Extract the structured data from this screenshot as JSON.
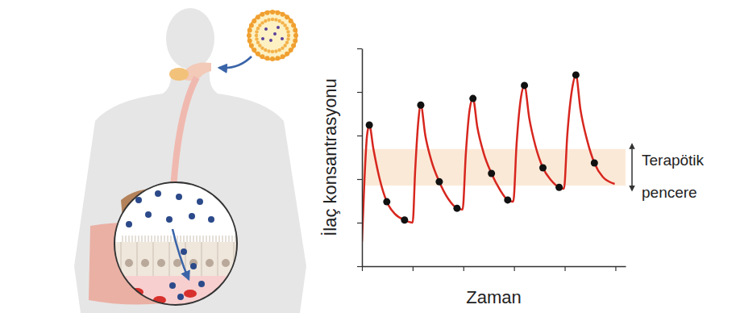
{
  "chart_data": {
    "type": "line",
    "x_label": "Zaman",
    "y_label": "İlaç konsantrasyonu",
    "xlim": [
      0,
      10.4
    ],
    "xticks": [
      0,
      2,
      4,
      6,
      8,
      10
    ],
    "ylim": [
      0,
      5
    ],
    "yticks": [
      0,
      1,
      2,
      3,
      4,
      5
    ],
    "tick_labels": false,
    "grid": false,
    "series": [
      {
        "type": "line",
        "color": "#d7261e",
        "x": [
          0,
          0.1,
          0.2,
          0.29,
          0.45,
          0.7,
          0.98,
          1.3,
          1.68,
          2.0,
          2.1,
          2.22,
          2.32,
          2.5,
          2.75,
          3.05,
          3.4,
          3.75,
          3.97,
          4.1,
          4.25,
          4.38,
          4.55,
          4.8,
          5.11,
          5.45,
          5.75,
          5.97,
          6.1,
          6.28,
          6.41,
          6.6,
          6.85,
          7.14,
          7.45,
          7.78,
          7.97,
          8.1,
          8.3,
          8.44,
          8.62,
          8.88,
          9.17,
          9.5,
          9.97
        ],
        "values": [
          0.56,
          2.0,
          3.0,
          3.24,
          2.7,
          2.0,
          1.48,
          1.2,
          1.06,
          1.0,
          2.2,
          3.3,
          3.7,
          3.0,
          2.4,
          1.94,
          1.55,
          1.33,
          1.3,
          2.6,
          3.6,
          3.85,
          3.2,
          2.6,
          2.13,
          1.75,
          1.52,
          1.48,
          2.8,
          3.9,
          4.15,
          3.4,
          2.75,
          2.26,
          1.98,
          1.81,
          1.78,
          3.0,
          4.1,
          4.39,
          3.6,
          2.9,
          2.37,
          2.05,
          1.89
        ]
      },
      {
        "type": "scatter",
        "color": "#111111",
        "marker": "circle",
        "x": [
          0.29,
          0.98,
          1.68,
          2.32,
          3.05,
          3.75,
          4.38,
          5.11,
          5.75,
          6.41,
          7.14,
          7.78,
          8.44,
          9.17
        ],
        "values": [
          3.24,
          1.48,
          1.06,
          3.7,
          1.94,
          1.33,
          3.85,
          2.13,
          1.52,
          4.15,
          2.26,
          1.81,
          4.39,
          2.37
        ]
      }
    ],
    "band": {
      "label": "Terapötik pencere",
      "range": [
        1.85,
        2.69
      ],
      "color": "#fbe9d7"
    }
  }
}
